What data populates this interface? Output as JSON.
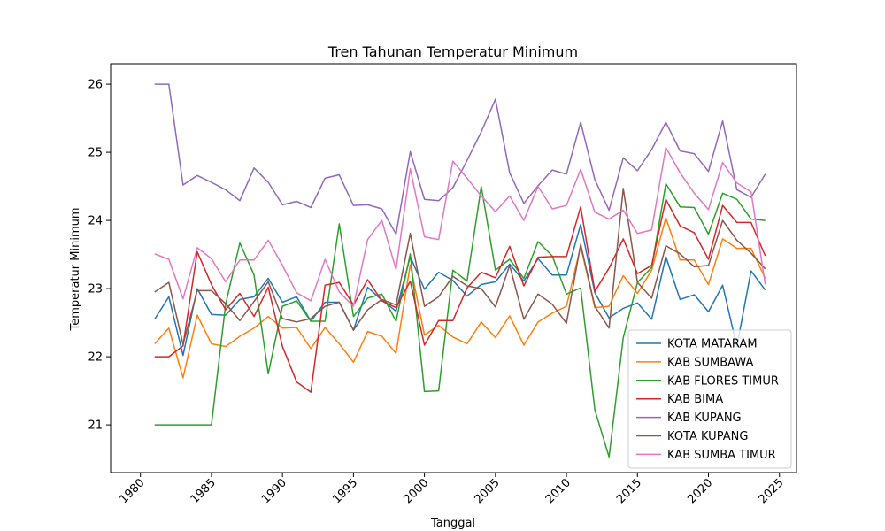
{
  "chart_data": {
    "type": "line",
    "title": "Tren Tahunan Temperatur Minimum",
    "xlabel": "Tanggal",
    "ylabel": "Temperatur Minimum",
    "xlim": [
      1977.9,
      2026.2
    ],
    "ylim": [
      20.3,
      26.3
    ],
    "xticks": [
      1980,
      1985,
      1990,
      1995,
      2000,
      2005,
      2010,
      2015,
      2020,
      2025
    ],
    "yticks": [
      21,
      22,
      23,
      24,
      25,
      26
    ],
    "grid": false,
    "legend_position": "lower-right",
    "x": [
      1981,
      1982,
      1983,
      1984,
      1985,
      1986,
      1987,
      1988,
      1989,
      1990,
      1991,
      1992,
      1993,
      1994,
      1995,
      1996,
      1997,
      1998,
      1999,
      2000,
      2001,
      2002,
      2003,
      2004,
      2005,
      2006,
      2007,
      2008,
      2009,
      2010,
      2011,
      2012,
      2013,
      2014,
      2015,
      2016,
      2017,
      2018,
      2019,
      2020,
      2021,
      2022,
      2023,
      2024
    ],
    "series": [
      {
        "name": "KOTA MATARAM",
        "color": "#1f77b4",
        "values": [
          22.55,
          22.88,
          22.02,
          23.0,
          22.62,
          22.61,
          22.84,
          22.88,
          23.15,
          22.8,
          22.88,
          22.52,
          22.8,
          22.8,
          22.39,
          23.02,
          22.83,
          22.67,
          23.47,
          22.99,
          23.24,
          23.12,
          22.89,
          23.06,
          23.1,
          23.36,
          23.11,
          23.44,
          23.2,
          23.2,
          23.94,
          22.94,
          22.57,
          22.71,
          22.79,
          22.55,
          23.47,
          22.84,
          22.91,
          22.66,
          23.05,
          22.15,
          23.26,
          22.98
        ]
      },
      {
        "name": "KAB SUMBAWA",
        "color": "#ff7f0e",
        "values": [
          22.19,
          22.42,
          21.69,
          22.61,
          22.19,
          22.15,
          22.3,
          22.42,
          22.59,
          22.42,
          22.43,
          22.12,
          22.43,
          22.19,
          21.92,
          22.37,
          22.3,
          22.05,
          23.35,
          22.32,
          22.46,
          22.29,
          22.19,
          22.51,
          22.28,
          22.6,
          22.17,
          22.51,
          22.64,
          22.74,
          23.62,
          22.72,
          22.74,
          23.19,
          22.93,
          23.27,
          24.04,
          23.42,
          23.42,
          23.06,
          23.73,
          23.59,
          23.59,
          23.15
        ]
      },
      {
        "name": "KAB FLORES TIMUR",
        "color": "#2ca02c",
        "values": [
          21.0,
          21.0,
          21.0,
          21.0,
          21.0,
          22.77,
          23.67,
          23.2,
          21.75,
          22.74,
          22.82,
          22.52,
          22.52,
          23.95,
          22.59,
          22.86,
          22.92,
          22.52,
          23.51,
          21.49,
          21.5,
          23.27,
          23.11,
          24.5,
          23.27,
          23.43,
          23.15,
          23.69,
          23.48,
          22.92,
          23.01,
          21.22,
          20.53,
          22.28,
          23.09,
          23.31,
          24.54,
          24.2,
          24.19,
          23.8,
          24.4,
          24.31,
          24.02,
          24.0
        ]
      },
      {
        "name": "KAB BIMA",
        "color": "#d62728",
        "values": [
          22.0,
          22.0,
          22.16,
          23.54,
          23.06,
          22.69,
          22.93,
          22.59,
          23.02,
          22.15,
          21.63,
          21.48,
          23.05,
          23.09,
          22.76,
          23.13,
          22.82,
          22.72,
          23.11,
          22.17,
          22.53,
          22.53,
          23.01,
          23.24,
          23.16,
          23.62,
          23.04,
          23.46,
          23.47,
          23.47,
          24.2,
          22.96,
          23.3,
          23.73,
          23.22,
          23.34,
          24.31,
          23.92,
          23.82,
          23.43,
          24.22,
          23.97,
          23.97,
          23.48
        ]
      },
      {
        "name": "KAB KUPANG",
        "color": "#9467bd",
        "values": [
          26.0,
          26.0,
          24.52,
          24.66,
          24.56,
          24.45,
          24.29,
          24.77,
          24.56,
          24.23,
          24.28,
          24.19,
          24.62,
          24.67,
          24.22,
          24.23,
          24.17,
          23.8,
          25.01,
          24.31,
          24.29,
          24.48,
          24.88,
          25.3,
          25.78,
          24.7,
          24.25,
          24.51,
          24.74,
          24.68,
          25.44,
          24.6,
          24.15,
          24.92,
          24.73,
          25.04,
          25.44,
          25.02,
          24.98,
          24.72,
          25.46,
          24.45,
          24.34,
          24.68
        ]
      },
      {
        "name": "KOTA KUPANG",
        "color": "#8c564b",
        "values": [
          22.95,
          23.09,
          22.18,
          22.97,
          22.97,
          22.78,
          22.53,
          22.81,
          23.1,
          22.56,
          22.51,
          22.56,
          22.74,
          22.8,
          22.39,
          22.69,
          22.84,
          22.76,
          23.81,
          22.74,
          22.88,
          23.18,
          23.04,
          23.0,
          22.73,
          23.34,
          22.55,
          22.92,
          22.77,
          22.49,
          23.65,
          22.74,
          22.42,
          24.47,
          23.09,
          22.86,
          23.63,
          23.51,
          23.32,
          23.34,
          24.0,
          23.71,
          23.52,
          23.29
        ]
      },
      {
        "name": "KAB SUMBA TIMUR",
        "color": "#e377c2",
        "values": [
          23.51,
          23.43,
          22.85,
          23.6,
          23.44,
          23.1,
          23.42,
          23.42,
          23.71,
          23.34,
          22.94,
          22.82,
          23.43,
          22.95,
          22.74,
          23.72,
          24.0,
          23.28,
          24.76,
          23.76,
          23.72,
          24.87,
          24.62,
          24.36,
          24.13,
          24.36,
          24.0,
          24.5,
          24.17,
          24.22,
          24.75,
          24.12,
          24.02,
          24.15,
          23.81,
          23.86,
          25.07,
          24.7,
          24.4,
          24.16,
          24.85,
          24.55,
          24.42,
          23.06
        ]
      }
    ]
  }
}
